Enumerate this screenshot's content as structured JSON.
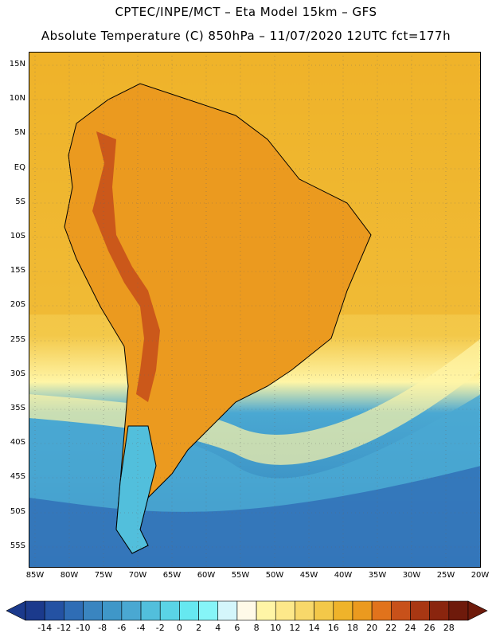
{
  "header": {
    "line1": "CPTEC/INPE/MCT –  Eta Model 15km – GFS",
    "line2": "Absolute Temperature (C) 850hPa – 11/07/2020 12UTC fct=177h"
  },
  "map": {
    "lat_labels": [
      "15N",
      "10N",
      "5N",
      "EQ",
      "5S",
      "10S",
      "15S",
      "20S",
      "25S",
      "30S",
      "35S",
      "40S",
      "45S",
      "50S",
      "55S"
    ],
    "lon_labels": [
      "85W",
      "80W",
      "75W",
      "70W",
      "65W",
      "60W",
      "55W",
      "50W",
      "45W",
      "40W",
      "35W",
      "30W",
      "25W",
      "20W"
    ],
    "lat_range": [
      -58,
      16
    ],
    "lon_range": [
      -86,
      -20
    ]
  },
  "colorbar": {
    "labels": [
      "-14",
      "-12",
      "-10",
      "-8",
      "-6",
      "-4",
      "-2",
      "0",
      "2",
      "4",
      "6",
      "8",
      "10",
      "12",
      "14",
      "16",
      "18",
      "20",
      "22",
      "24",
      "26",
      "28"
    ],
    "colors": [
      "#1b3a8c",
      "#2452a3",
      "#2f6db5",
      "#3a85c0",
      "#3f97c8",
      "#4aa8d2",
      "#52bfdc",
      "#5ad4e6",
      "#66e8f0",
      "#86f5f8",
      "#d4f6fb",
      "#fffae8",
      "#fff5a6",
      "#fde88a",
      "#f8d86a",
      "#f3c849",
      "#efb32a",
      "#eb9a1f",
      "#e1731c",
      "#c8511a",
      "#a83713",
      "#8a250e",
      "#6e1a0b"
    ]
  }
}
